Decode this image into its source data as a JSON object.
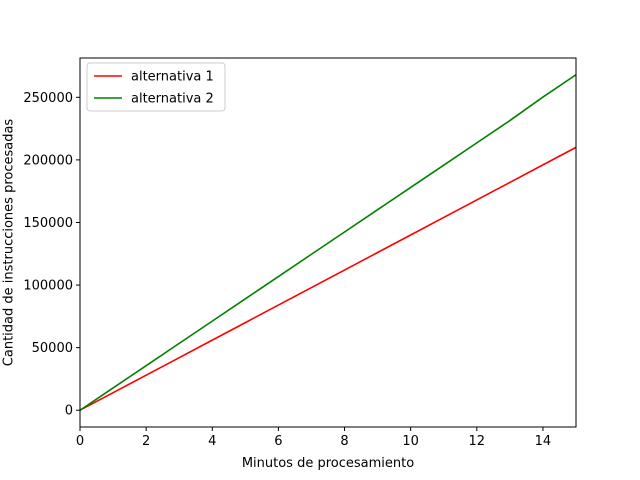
{
  "chart_data": {
    "type": "line",
    "title": "",
    "xlabel": "Minutos de procesamiento",
    "ylabel": "Cantidad de instrucciones procesadas",
    "xlim": [
      0,
      15
    ],
    "ylim": [
      -13400,
      281400
    ],
    "x_ticks": [
      0,
      2,
      4,
      6,
      8,
      10,
      12,
      14
    ],
    "y_ticks": [
      0,
      50000,
      100000,
      150000,
      200000,
      250000
    ],
    "grid": false,
    "legend_position": "top-left",
    "series": [
      {
        "name": "alternativa 1",
        "color": "#ff0000",
        "x": [
          0,
          1,
          2,
          3,
          4,
          5,
          6,
          7,
          8,
          9,
          10,
          11,
          12,
          13,
          14,
          15
        ],
        "y": [
          0,
          14000,
          28000,
          42000,
          56000,
          70000,
          84000,
          98000,
          112000,
          126000,
          140000,
          154000,
          168000,
          182000,
          196000,
          210000
        ]
      },
      {
        "name": "alternativa 2",
        "color": "#008000",
        "x": [
          0,
          1,
          2,
          3,
          4,
          5,
          6,
          7,
          8,
          9,
          10,
          11,
          12,
          13,
          14,
          15
        ],
        "y": [
          0,
          17800,
          35600,
          53400,
          71200,
          89000,
          106800,
          124600,
          142400,
          160200,
          178000,
          195800,
          213600,
          231400,
          250200,
          268000
        ]
      }
    ]
  }
}
